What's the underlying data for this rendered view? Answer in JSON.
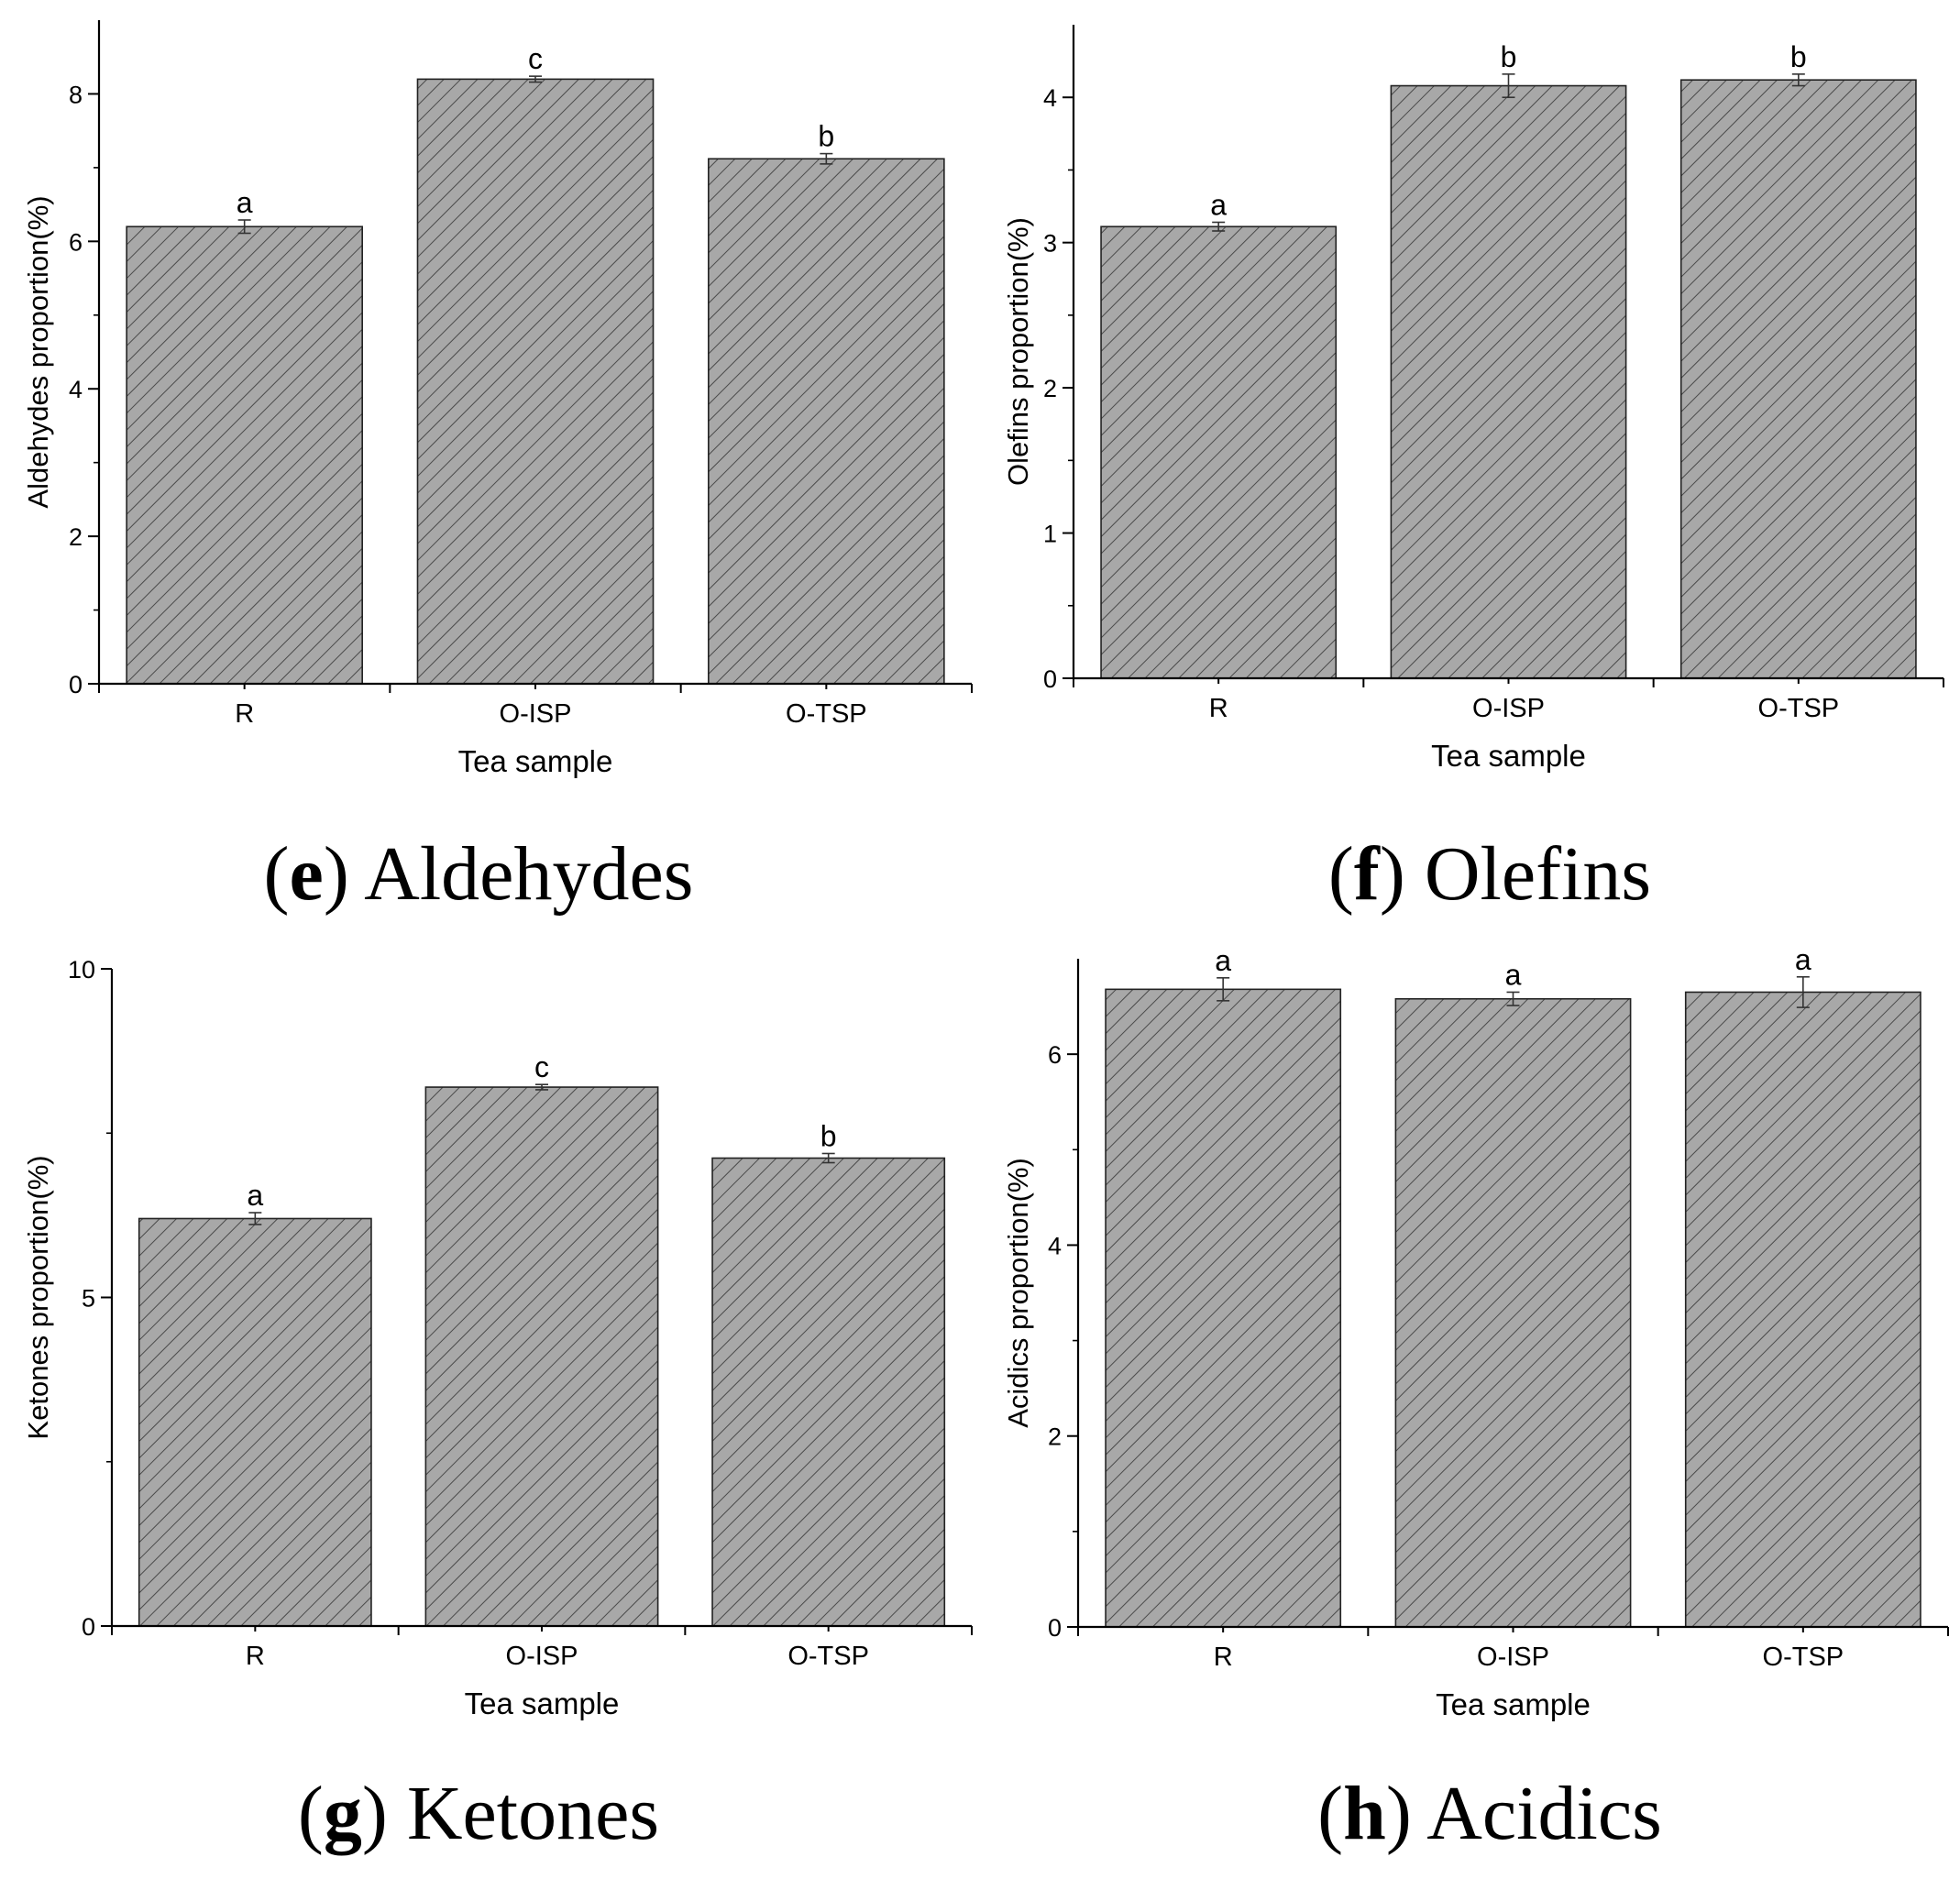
{
  "figure_panels": [
    {
      "id": "e",
      "letter": "e",
      "caption": "Aldehydes"
    },
    {
      "id": "f",
      "letter": "f",
      "caption": "Olefins"
    },
    {
      "id": "g",
      "letter": "g",
      "caption": "Ketones"
    },
    {
      "id": "h",
      "letter": "h",
      "caption": "Acidics"
    }
  ],
  "chart_data": [
    {
      "type": "bar",
      "panel": "e",
      "title": "",
      "xlabel": "Tea sample",
      "ylabel": "Aldehydes proportion(%)",
      "categories": [
        "R",
        "O-ISP",
        "O-TSP"
      ],
      "values": [
        6.2,
        8.2,
        7.12
      ],
      "errors": [
        0.09,
        0.04,
        0.07
      ],
      "significance": [
        "a",
        "c",
        "b"
      ],
      "ylim": [
        0,
        9
      ],
      "yticks": [
        0,
        2,
        4,
        6,
        8
      ],
      "ytick_labels": [
        "0",
        "2",
        "4",
        "6",
        "8"
      ],
      "grid": false,
      "bar_fill": "#a8a8a8",
      "hatch_color": "#4a4a4a"
    },
    {
      "type": "bar",
      "panel": "f",
      "title": "",
      "xlabel": "Tea sample",
      "ylabel": "Olefins proportion(%)",
      "categories": [
        "R",
        "O-ISP",
        "O-TSP"
      ],
      "values": [
        3.11,
        4.08,
        4.12
      ],
      "errors": [
        0.03,
        0.08,
        0.04
      ],
      "significance": [
        "a",
        "b",
        "b"
      ],
      "ylim": [
        0,
        4.5
      ],
      "yticks": [
        0,
        1,
        2,
        3,
        4
      ],
      "ytick_labels": [
        "0",
        "1",
        "2",
        "3",
        "4"
      ],
      "grid": false,
      "bar_fill": "#a8a8a8",
      "hatch_color": "#4a4a4a"
    },
    {
      "type": "bar",
      "panel": "g",
      "title": "",
      "xlabel": "Tea sample",
      "ylabel": "Ketones proportion(%)",
      "categories": [
        "R",
        "O-ISP",
        "O-TSP"
      ],
      "values": [
        6.2,
        8.2,
        7.12
      ],
      "errors": [
        0.09,
        0.04,
        0.07
      ],
      "significance": [
        "a",
        "c",
        "b"
      ],
      "ylim": [
        0,
        10
      ],
      "yticks": [
        0,
        5,
        10
      ],
      "ytick_labels": [
        "0",
        "5",
        "10"
      ],
      "grid": false,
      "bar_fill": "#a8a8a8",
      "hatch_color": "#4a4a4a"
    },
    {
      "type": "bar",
      "panel": "h",
      "title": "",
      "xlabel": "Tea sample",
      "ylabel": "Acidics  proportion(%)",
      "categories": [
        "R",
        "O-ISP",
        "O-TSP"
      ],
      "values": [
        6.68,
        6.58,
        6.65
      ],
      "errors": [
        0.12,
        0.07,
        0.16
      ],
      "significance": [
        "a",
        "a",
        "a"
      ],
      "ylim": [
        0,
        7
      ],
      "yticks": [
        0,
        2,
        4,
        6
      ],
      "ytick_labels": [
        "0",
        "2",
        "4",
        "6"
      ],
      "grid": false,
      "bar_fill": "#a8a8a8",
      "hatch_color": "#4a4a4a"
    }
  ]
}
